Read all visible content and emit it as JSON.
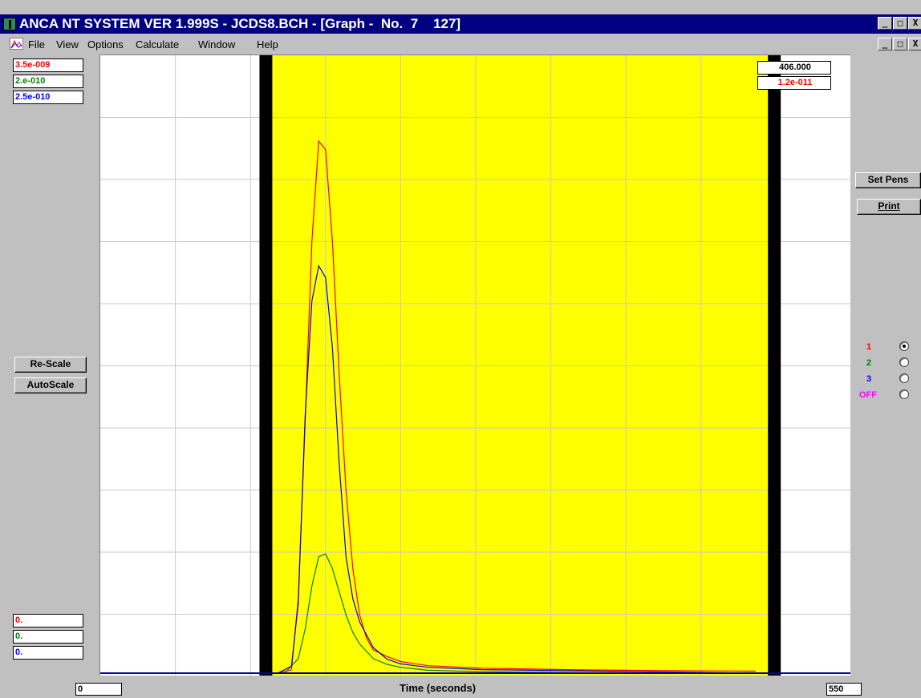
{
  "window": {
    "title": "ANCA NT SYSTEM VER 1.999S - JCDS8.BCH - [Graph -  No.  7    127]",
    "caption_buttons": [
      "_",
      "□",
      "X"
    ],
    "mdi_buttons": [
      "_",
      "□",
      "X"
    ]
  },
  "menu": {
    "items": [
      "File",
      "View",
      "Options",
      "Calculate",
      "Window",
      "Help"
    ]
  },
  "scales": {
    "y_max": [
      "3.5e-009",
      "2.e-010",
      "2.5e-010"
    ],
    "y_min": [
      "0.",
      "0.",
      "0."
    ],
    "colors": [
      "#ff0000",
      "#008000",
      "#0000ff"
    ]
  },
  "cursor": {
    "time": "406.000",
    "value": "1.2e-011"
  },
  "buttons": {
    "rescale": "Re-Scale",
    "autoscale": "AutoScale",
    "set_pens": "Set Pens",
    "print": "Print"
  },
  "pens": [
    {
      "label": "1",
      "color": "#ff0000",
      "checked": true
    },
    {
      "label": "2",
      "color": "#008000",
      "checked": false
    },
    {
      "label": "3",
      "color": "#0000ff",
      "checked": false
    },
    {
      "label": "OFF",
      "color": "#ff00ff",
      "checked": false
    }
  ],
  "axis": {
    "x_min": "0",
    "x_max": "550",
    "x_label": "Time (seconds)"
  },
  "chart_data": {
    "type": "line",
    "xlabel": "Time (seconds)",
    "xlim": [
      0,
      550
    ],
    "grid": true,
    "highlight_region": [
      126,
      489
    ],
    "highlight_color": "#ffff00",
    "series": [
      {
        "color": "#ff0000",
        "ylim": [
          0,
          3.5e-09
        ],
        "x": [
          0,
          130,
          140,
          145,
          150,
          155,
          160,
          165,
          170,
          175,
          180,
          185,
          190,
          195,
          200,
          210,
          220,
          240,
          280,
          350,
          420,
          480
        ],
        "y": [
          0,
          0,
          2e-11,
          4.5e-10,
          1.5e-09,
          2.6e-09,
          3.2e-09,
          3.15e-09,
          2.6e-09,
          1.8e-09,
          1.1e-09,
          6.3e-10,
          3.5e-10,
          2.1e-10,
          1.4e-10,
          1e-10,
          7e-11,
          4.5e-11,
          3e-11,
          2e-11,
          1.5e-11,
          1.2e-11
        ]
      },
      {
        "color": "#008000",
        "ylim": [
          0,
          2e-10
        ],
        "x": [
          0,
          135,
          145,
          150,
          155,
          160,
          165,
          170,
          175,
          180,
          185,
          190,
          200,
          210,
          220,
          240,
          280,
          350,
          480
        ],
        "y": [
          0,
          0,
          5e-12,
          1.5e-11,
          3e-11,
          4e-11,
          4.1e-11,
          3.6e-11,
          2.8e-11,
          2e-11,
          1.4e-11,
          1e-11,
          5e-12,
          3e-12,
          2e-12,
          1e-12,
          5e-13,
          2e-13,
          0
        ]
      },
      {
        "color": "#0000ff",
        "ylim": [
          0,
          2.5e-10
        ],
        "x": [
          0,
          130,
          140,
          145,
          150,
          155,
          160,
          165,
          170,
          175,
          180,
          185,
          190,
          200,
          210,
          220,
          240,
          280,
          350,
          480
        ],
        "y": [
          0,
          0,
          3e-12,
          3e-11,
          1.1e-10,
          1.6e-10,
          1.75e-10,
          1.7e-10,
          1.4e-10,
          9e-11,
          5e-11,
          3.2e-11,
          2.2e-11,
          1.1e-11,
          6e-12,
          4e-12,
          2.5e-12,
          1.5e-12,
          1e-12,
          0
        ]
      }
    ]
  }
}
